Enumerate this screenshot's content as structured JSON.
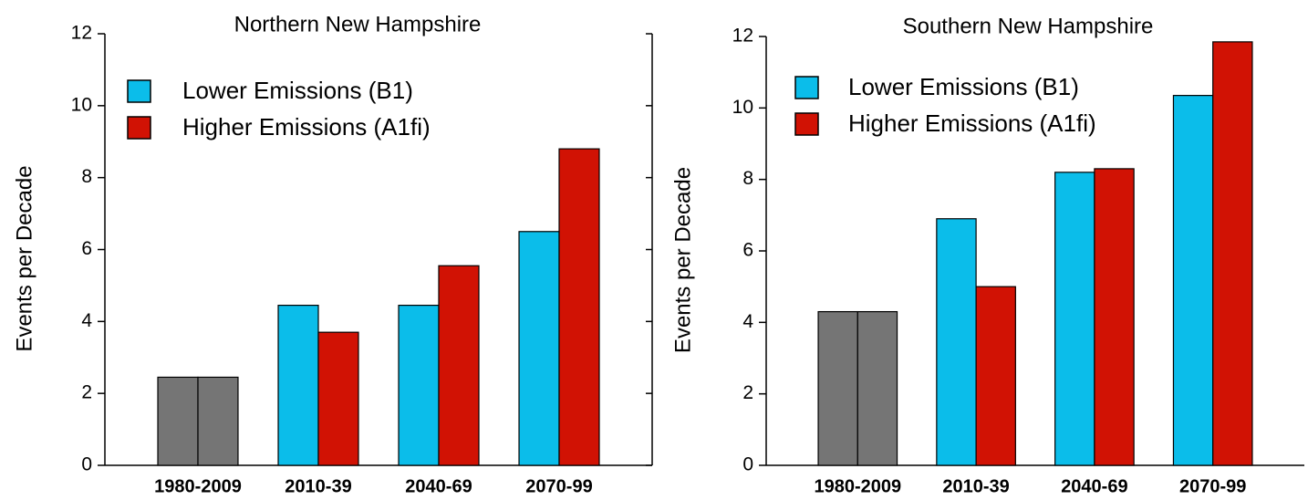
{
  "chart_data": [
    {
      "type": "bar",
      "title": "Northern New Hampshire",
      "ylabel": "Events per Decade",
      "categories": [
        "1980-2009",
        "2010-39",
        "2040-69",
        "2070-99"
      ],
      "series": [
        {
          "name": "Lower Emissions (B1)",
          "color": "#0bbdea",
          "colors": [
            "#757575",
            "#0bbdea",
            "#0bbdea",
            "#0bbdea"
          ],
          "values": [
            2.45,
            4.45,
            4.45,
            6.5
          ]
        },
        {
          "name": "Higher Emissions (A1fi)",
          "color": "#d11204",
          "colors": [
            "#757575",
            "#d11204",
            "#d11204",
            "#d11204"
          ],
          "values": [
            2.45,
            3.7,
            5.55,
            8.8
          ]
        }
      ],
      "ylim": [
        0,
        12
      ],
      "yticks": [
        0,
        2,
        4,
        6,
        8,
        10,
        12
      ],
      "right_ticks": true
    },
    {
      "type": "bar",
      "title": "Southern New Hampshire",
      "ylabel": "Events per Decade",
      "categories": [
        "1980-2009",
        "2010-39",
        "2040-69",
        "2070-99"
      ],
      "series": [
        {
          "name": "Lower Emissions (B1)",
          "color": "#0bbdea",
          "colors": [
            "#757575",
            "#0bbdea",
            "#0bbdea",
            "#0bbdea"
          ],
          "values": [
            4.3,
            6.9,
            8.2,
            10.35
          ]
        },
        {
          "name": "Higher Emissions (A1fi)",
          "color": "#d11204",
          "colors": [
            "#757575",
            "#d11204",
            "#d11204",
            "#d11204"
          ],
          "values": [
            4.3,
            5.0,
            8.3,
            11.85
          ]
        }
      ],
      "ylim": [
        0,
        12
      ],
      "yticks": [
        0,
        2,
        4,
        6,
        8,
        10,
        12
      ],
      "right_ticks": false
    }
  ]
}
